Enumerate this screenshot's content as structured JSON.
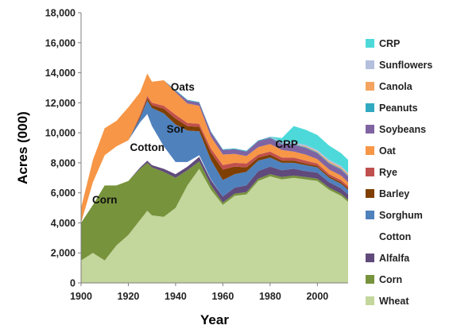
{
  "chart_data": {
    "type": "area",
    "stacked": true,
    "xlabel": "Year",
    "ylabel": "Acres (000)",
    "xlim": [
      1900,
      2013
    ],
    "ylim": [
      0,
      18000
    ],
    "x_ticks": [
      "1900",
      "1920",
      "1940",
      "1960",
      "1980",
      "2000"
    ],
    "y_ticks": [
      "0",
      "2,000",
      "4,000",
      "6,000",
      "8,000",
      "10,000",
      "12,000",
      "14,000",
      "16,000",
      "18,000"
    ],
    "grid": false,
    "legend_position": "right",
    "x": [
      1900,
      1905,
      1910,
      1915,
      1920,
      1925,
      1928,
      1930,
      1935,
      1940,
      1945,
      1950,
      1955,
      1960,
      1965,
      1970,
      1975,
      1980,
      1985,
      1990,
      1995,
      2000,
      2005,
      2010,
      2013
    ],
    "series": [
      {
        "name": "Wheat",
        "color": "#c3d69b",
        "values": [
          1500,
          2000,
          1500,
          2500,
          3200,
          4200,
          4800,
          4500,
          4400,
          5000,
          6500,
          7600,
          6200,
          5200,
          5800,
          5900,
          6800,
          7100,
          6900,
          7000,
          6900,
          6800,
          6200,
          5800,
          5400
        ]
      },
      {
        "name": "Corn",
        "color": "#77933c",
        "values": [
          2500,
          3200,
          5000,
          4000,
          3600,
          3400,
          3200,
          3200,
          3000,
          2000,
          1000,
          500,
          300,
          150,
          150,
          150,
          150,
          150,
          150,
          150,
          150,
          150,
          150,
          150,
          150
        ]
      },
      {
        "name": "Alfalfa",
        "color": "#604a7b",
        "values": [
          0,
          0,
          0,
          0,
          0,
          100,
          150,
          150,
          200,
          250,
          250,
          300,
          350,
          400,
          400,
          450,
          500,
          500,
          450,
          450,
          400,
          400,
          350,
          350,
          350
        ]
      },
      {
        "name": "Cotton",
        "color": "#ffffff",
        "values": [
          0,
          1500,
          2000,
          2600,
          2700,
          3000,
          3100,
          2600,
          1500,
          800,
          300,
          100,
          30,
          0,
          0,
          0,
          0,
          0,
          0,
          0,
          0,
          0,
          0,
          0,
          0
        ]
      },
      {
        "name": "Sorghum",
        "color": "#4f81bd",
        "values": [
          0,
          0,
          0,
          0,
          0,
          300,
          900,
          1200,
          2200,
          2500,
          2100,
          1600,
          1300,
          1100,
          900,
          900,
          700,
          600,
          500,
          400,
          400,
          350,
          300,
          300,
          300
        ]
      },
      {
        "name": "Barley",
        "color": "#7f3f00",
        "values": [
          0,
          0,
          0,
          0,
          0,
          100,
          150,
          200,
          300,
          400,
          300,
          300,
          500,
          700,
          500,
          300,
          200,
          200,
          150,
          150,
          100,
          100,
          100,
          100,
          100
        ]
      },
      {
        "name": "Rye",
        "color": "#c0504d",
        "values": [
          0,
          0,
          0,
          0,
          0,
          100,
          150,
          150,
          200,
          250,
          200,
          200,
          250,
          300,
          250,
          250,
          200,
          200,
          200,
          200,
          200,
          150,
          150,
          150,
          150
        ]
      },
      {
        "name": "Oat",
        "color": "#f79646",
        "values": [
          1000,
          1500,
          1800,
          1700,
          2200,
          1500,
          1500,
          1400,
          1700,
          1500,
          1300,
          1200,
          800,
          700,
          600,
          500,
          500,
          500,
          500,
          400,
          400,
          300,
          300,
          300,
          250
        ]
      },
      {
        "name": "Soybeans",
        "color": "#8064a2",
        "values": [
          0,
          0,
          0,
          0,
          0,
          0,
          0,
          0,
          0,
          100,
          200,
          200,
          300,
          300,
          300,
          300,
          400,
          400,
          400,
          450,
          450,
          400,
          400,
          400,
          400
        ]
      },
      {
        "name": "Peanuts",
        "color": "#31a9c1",
        "values": [
          0,
          0,
          0,
          0,
          0,
          0,
          0,
          0,
          0,
          50,
          50,
          50,
          50,
          50,
          50,
          50,
          50,
          50,
          50,
          50,
          50,
          50,
          50,
          50,
          50
        ]
      },
      {
        "name": "Canola",
        "color": "#f4a460",
        "values": [
          0,
          0,
          0,
          0,
          0,
          0,
          0,
          0,
          0,
          0,
          0,
          0,
          0,
          0,
          0,
          0,
          0,
          0,
          0,
          0,
          50,
          50,
          100,
          100,
          100
        ]
      },
      {
        "name": "Sunflowers",
        "color": "#b3bfdc",
        "values": [
          0,
          0,
          0,
          0,
          0,
          0,
          0,
          0,
          0,
          0,
          0,
          0,
          0,
          0,
          0,
          0,
          0,
          50,
          100,
          100,
          100,
          100,
          100,
          100,
          100
        ]
      },
      {
        "name": "CRP",
        "color": "#4dd9d9",
        "values": [
          0,
          0,
          0,
          0,
          0,
          0,
          0,
          0,
          0,
          0,
          0,
          0,
          0,
          0,
          0,
          0,
          0,
          0,
          250,
          1100,
          1000,
          1000,
          950,
          850,
          850
        ]
      }
    ],
    "annotations": [
      {
        "text": "Corn",
        "x": 1910,
        "y": 5300
      },
      {
        "text": "Cotton",
        "x": 1928,
        "y": 8800
      },
      {
        "text": "Sor",
        "x": 1940,
        "y": 10000
      },
      {
        "text": "Oats",
        "x": 1943,
        "y": 12800
      },
      {
        "text": "CRP",
        "x": 1987,
        "y": 9000
      }
    ]
  }
}
